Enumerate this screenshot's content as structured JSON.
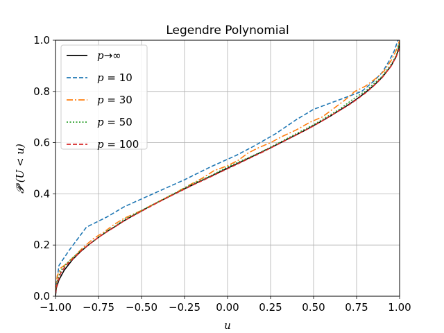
{
  "chart_data": {
    "type": "line",
    "title": "Legendre Polynomial",
    "xlabel": "u",
    "ylabel": "𝓟 (U < u)",
    "xlim": [
      -1.0,
      1.0
    ],
    "ylim": [
      0.0,
      1.0
    ],
    "grid": true,
    "legend_position": "top-left",
    "x_ticks": [
      "−1.00",
      "−0.75",
      "−0.50",
      "−0.25",
      "0.00",
      "0.25",
      "0.50",
      "0.75",
      "1.00"
    ],
    "x_tick_values": [
      -1.0,
      -0.75,
      -0.5,
      -0.25,
      0.0,
      0.25,
      0.5,
      0.75,
      1.0
    ],
    "y_ticks": [
      "0.0",
      "0.2",
      "0.4",
      "0.6",
      "0.8",
      "1.0"
    ],
    "y_tick_values": [
      0.0,
      0.2,
      0.4,
      0.6,
      0.8,
      1.0
    ],
    "series": [
      {
        "name": "p→∞",
        "label_base": "p",
        "label_op": "→∞",
        "label_value": "",
        "color": "#000000",
        "style": "solid",
        "x": [
          -1.0,
          -0.995,
          -0.98,
          -0.95,
          -0.9,
          -0.85,
          -0.8,
          -0.75,
          -0.7,
          -0.65,
          -0.6,
          -0.55,
          -0.5,
          -0.45,
          -0.4,
          -0.35,
          -0.3,
          -0.25,
          -0.2,
          -0.15,
          -0.1,
          -0.05,
          0.0,
          0.05,
          0.1,
          0.15,
          0.2,
          0.25,
          0.3,
          0.35,
          0.4,
          0.45,
          0.5,
          0.55,
          0.6,
          0.65,
          0.7,
          0.75,
          0.8,
          0.85,
          0.9,
          0.95,
          0.98,
          0.995,
          1.0
        ],
        "y": [
          0.0,
          0.032,
          0.064,
          0.101,
          0.144,
          0.177,
          0.205,
          0.23,
          0.253,
          0.274,
          0.295,
          0.315,
          0.333,
          0.352,
          0.369,
          0.386,
          0.403,
          0.42,
          0.436,
          0.452,
          0.468,
          0.484,
          0.5,
          0.516,
          0.532,
          0.548,
          0.564,
          0.58,
          0.597,
          0.614,
          0.631,
          0.648,
          0.667,
          0.685,
          0.705,
          0.726,
          0.747,
          0.77,
          0.795,
          0.823,
          0.856,
          0.899,
          0.936,
          0.968,
          1.0
        ]
      },
      {
        "name": "p = 10",
        "label_base": "p",
        "label_op": " = ",
        "label_value": "10",
        "color": "#1f77b4",
        "style": "dashed",
        "x": [
          -1.0,
          -0.98,
          -0.95,
          -0.92,
          -0.82,
          -0.7,
          -0.6,
          -0.5,
          -0.4,
          -0.25,
          -0.1,
          0.05,
          0.15,
          0.28,
          0.4,
          0.5,
          0.6,
          0.7,
          0.78,
          0.85,
          0.9,
          0.94,
          0.97,
          0.99,
          1.0
        ],
        "y": [
          0.02,
          0.12,
          0.15,
          0.18,
          0.27,
          0.31,
          0.35,
          0.38,
          0.41,
          0.455,
          0.505,
          0.55,
          0.585,
          0.635,
          0.69,
          0.73,
          0.755,
          0.78,
          0.8,
          0.84,
          0.875,
          0.92,
          0.96,
          1.0,
          1.0
        ]
      },
      {
        "name": "p = 30",
        "label_base": "p",
        "label_op": " = ",
        "label_value": "30",
        "color": "#ff7f0e",
        "style": "dashdot",
        "x": [
          -1.0,
          -0.99,
          -0.97,
          -0.94,
          -0.9,
          -0.84,
          -0.78,
          -0.72,
          -0.66,
          -0.6,
          -0.5,
          -0.4,
          -0.3,
          -0.22,
          -0.15,
          -0.08,
          0.0,
          0.06,
          0.12,
          0.18,
          0.25,
          0.32,
          0.4,
          0.48,
          0.55,
          0.62,
          0.68,
          0.74,
          0.8,
          0.86,
          0.91,
          0.95,
          0.98,
          1.0
        ],
        "y": [
          0.02,
          0.08,
          0.11,
          0.125,
          0.15,
          0.19,
          0.225,
          0.25,
          0.28,
          0.305,
          0.335,
          0.37,
          0.405,
          0.435,
          0.46,
          0.49,
          0.51,
          0.53,
          0.56,
          0.58,
          0.6,
          0.625,
          0.65,
          0.68,
          0.7,
          0.735,
          0.765,
          0.8,
          0.82,
          0.85,
          0.88,
          0.92,
          0.96,
          1.0
        ]
      },
      {
        "name": "p = 50",
        "label_base": "p",
        "label_op": " = ",
        "label_value": "50",
        "color": "#2ca02c",
        "style": "dotted",
        "x": [
          -1.0,
          -0.99,
          -0.97,
          -0.94,
          -0.9,
          -0.85,
          -0.8,
          -0.75,
          -0.7,
          -0.65,
          -0.6,
          -0.5,
          -0.4,
          -0.3,
          -0.2,
          -0.1,
          0.0,
          0.1,
          0.2,
          0.3,
          0.4,
          0.5,
          0.6,
          0.65,
          0.7,
          0.75,
          0.8,
          0.85,
          0.9,
          0.95,
          0.98,
          1.0
        ],
        "y": [
          0.01,
          0.06,
          0.1,
          0.125,
          0.15,
          0.18,
          0.205,
          0.23,
          0.255,
          0.275,
          0.3,
          0.335,
          0.37,
          0.405,
          0.44,
          0.47,
          0.505,
          0.535,
          0.565,
          0.6,
          0.635,
          0.67,
          0.71,
          0.73,
          0.755,
          0.78,
          0.8,
          0.83,
          0.86,
          0.905,
          0.94,
          0.99
        ]
      },
      {
        "name": "p = 100",
        "label_base": "p",
        "label_op": " = ",
        "label_value": "100",
        "color": "#d62728",
        "style": "dashed",
        "x": [
          -1.0,
          -0.99,
          -0.97,
          -0.94,
          -0.9,
          -0.85,
          -0.8,
          -0.75,
          -0.7,
          -0.65,
          -0.6,
          -0.5,
          -0.4,
          -0.3,
          -0.2,
          -0.1,
          0.0,
          0.1,
          0.2,
          0.3,
          0.4,
          0.5,
          0.6,
          0.7,
          0.75,
          0.8,
          0.85,
          0.9,
          0.95,
          0.98,
          1.0
        ],
        "y": [
          0.01,
          0.05,
          0.09,
          0.12,
          0.145,
          0.178,
          0.205,
          0.23,
          0.252,
          0.273,
          0.295,
          0.332,
          0.368,
          0.402,
          0.435,
          0.466,
          0.498,
          0.53,
          0.562,
          0.596,
          0.63,
          0.665,
          0.705,
          0.745,
          0.768,
          0.793,
          0.822,
          0.855,
          0.898,
          0.935,
          0.97
        ]
      }
    ]
  }
}
